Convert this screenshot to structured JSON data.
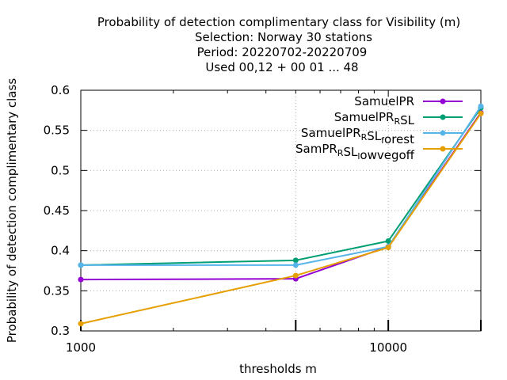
{
  "chart_data": {
    "type": "line",
    "title_lines": [
      "Probability of detection complimentary class  for Visibility (m)",
      "Selection: Norway     30 stations",
      "Period: 20220702-20220709",
      "Used  00,12  + 00 01 ... 48"
    ],
    "xlabel": "thresholds m",
    "ylabel": "Probability of detection complimentary class",
    "x_scale": "log",
    "xlim": [
      1000,
      20000
    ],
    "ylim": [
      0.3,
      0.6
    ],
    "x_ticks": [
      {
        "value": 1000,
        "label": "1000"
      },
      {
        "value": 10000,
        "label": "10000"
      }
    ],
    "y_ticks": [
      {
        "value": 0.3,
        "label": "0.3"
      },
      {
        "value": 0.35,
        "label": "0.35"
      },
      {
        "value": 0.4,
        "label": "0.4"
      },
      {
        "value": 0.45,
        "label": "0.45"
      },
      {
        "value": 0.5,
        "label": "0.5"
      },
      {
        "value": 0.55,
        "label": "0.55"
      },
      {
        "value": 0.6,
        "label": "0.6"
      }
    ],
    "grid": true,
    "legend_position": "top-right",
    "x": [
      1000,
      5000,
      10000,
      20000
    ],
    "series": [
      {
        "name": "SamuelPR",
        "legend": {
          "parts": [
            {
              "t": "SamuelPR"
            }
          ]
        },
        "color": "#9400d3",
        "values": [
          0.364,
          0.365,
          0.405,
          0.572
        ]
      },
      {
        "name": "SamuelPR_RSL",
        "legend": {
          "parts": [
            {
              "t": "SamuelPR"
            },
            {
              "t": "R",
              "sub": true
            },
            {
              "t": "SL"
            }
          ]
        },
        "color": "#009e73",
        "values": [
          0.382,
          0.388,
          0.412,
          0.578
        ]
      },
      {
        "name": "SamuelPR_RSL_forest",
        "legend": {
          "parts": [
            {
              "t": "SamuelPR"
            },
            {
              "t": "R",
              "sub": true
            },
            {
              "t": "SL"
            },
            {
              "t": "f",
              "sub": true
            },
            {
              "t": "orest"
            }
          ]
        },
        "color": "#56b4e9",
        "values": [
          0.382,
          0.382,
          0.405,
          0.58
        ]
      },
      {
        "name": "SamPR_RSL_lowvegoff",
        "legend": {
          "parts": [
            {
              "t": "SamPR"
            },
            {
              "t": "R",
              "sub": true
            },
            {
              "t": "SL"
            },
            {
              "t": "l",
              "sub": true
            },
            {
              "t": "owvegoff"
            }
          ]
        },
        "color": "#e69f00",
        "values": [
          0.309,
          0.369,
          0.404,
          0.571
        ]
      }
    ]
  }
}
